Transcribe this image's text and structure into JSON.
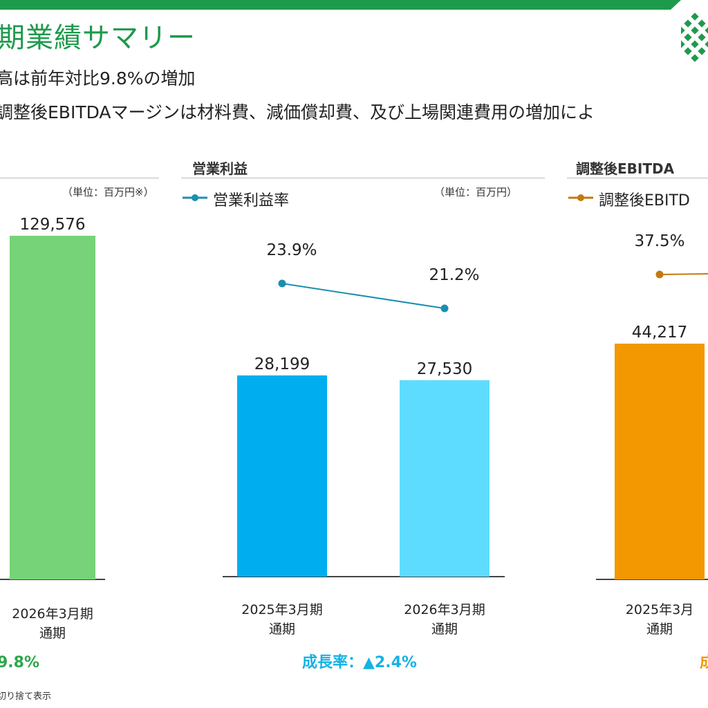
{
  "header": {
    "title": "期業績サマリー",
    "bullets": [
      "高は前年対比9.8%の増加",
      "調整後EBITDAマージンは材料費、減価償却費、及び上場関連費用の増加によ"
    ],
    "bar_color": "#1e9a4c",
    "logo_color": "#1e9a4c"
  },
  "footnote": "切り捨て表示",
  "chart_data": [
    {
      "type": "bar",
      "title": "",
      "unit": "（単位：百万円※）",
      "categories": [
        "2026年3月期\n通期"
      ],
      "series": [
        {
          "values": [
            129576
          ],
          "labels": [
            "129,576"
          ],
          "colors": [
            "#77d377"
          ]
        }
      ],
      "growth_label": "9.8%",
      "growth_color": "#2da54a"
    },
    {
      "type": "bar",
      "title": "営業利益",
      "unit": "（単位：百万円）",
      "categories": [
        "2025年3月期\n通期",
        "2026年3月期\n通期"
      ],
      "series": [
        {
          "values": [
            28199,
            27530
          ],
          "labels": [
            "28,199",
            "27,530"
          ],
          "colors": [
            "#00aeef",
            "#5ddcff"
          ]
        },
        {
          "name": "営業利益率",
          "type": "line",
          "values": [
            23.9,
            21.2
          ],
          "labels": [
            "23.9%",
            "21.2%"
          ],
          "color": "#1b8fb0"
        }
      ],
      "growth_label": "成長率：▲2.4%",
      "growth_color": "#15b2e4"
    },
    {
      "type": "bar",
      "title": "調整後EBITDA",
      "unit": "",
      "categories": [
        "2025年3月\n通期"
      ],
      "series": [
        {
          "values": [
            44217
          ],
          "labels": [
            "44,217"
          ],
          "colors": [
            "#f39800"
          ]
        },
        {
          "name": "調整後EBITD",
          "type": "line",
          "values": [
            37.5
          ],
          "labels": [
            "37.5%"
          ],
          "color": "#c27a0d"
        }
      ],
      "growth_label": "成",
      "growth_color": "#f39800"
    }
  ]
}
